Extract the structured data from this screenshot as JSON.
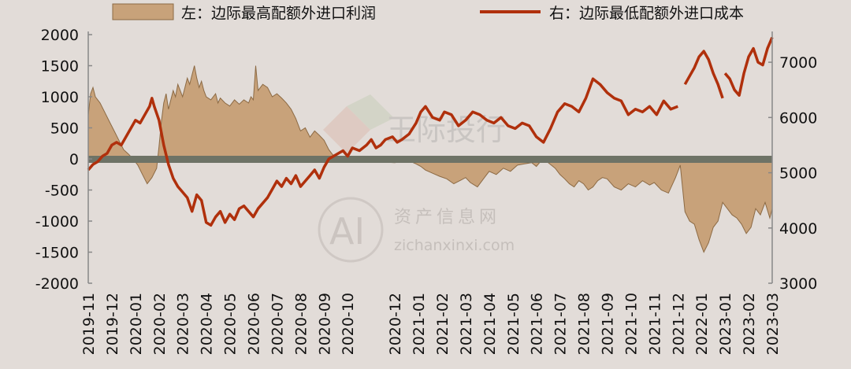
{
  "legend": {
    "left_label": "左：边际最高配额外进口利润",
    "right_label": "右：边际最低配额外进口成本"
  },
  "watermarks": {
    "top_text": "王际投行",
    "logo_text": "AI",
    "site_cn": "资产信息网",
    "site_url": "zichanxinxi.com"
  },
  "colors": {
    "area_fill": "#c8a27a",
    "area_stroke": "#8c6a44",
    "line": "#b0300c",
    "zero_band": "#6e7366",
    "background": "#e2dcd8",
    "axis": "#888888"
  },
  "chart_data": {
    "type": "area+line",
    "left_axis": {
      "ylim": [
        -2000,
        2000
      ],
      "ticks": [
        2000,
        1500,
        1000,
        500,
        0,
        -500,
        -1000,
        -1500,
        -2000
      ]
    },
    "right_axis": {
      "ylim": [
        3000,
        7500
      ],
      "ticks": [
        7000,
        6000,
        5000,
        4000,
        3000
      ]
    },
    "x_tick_labels": [
      "2019-11",
      "2019-12",
      "2020-01",
      "2020-02",
      "2020-03",
      "2020-04",
      "2020-05",
      "2020-06",
      "2020-07",
      "2020-08",
      "2020-09",
      "2020-10",
      "2020-12",
      "2021-01",
      "2021-02",
      "2021-03",
      "2021-04",
      "2021-05",
      "2021-06",
      "2021-07",
      "2021-08",
      "2021-09",
      "2021-10",
      "2021-11",
      "2021-12",
      "2022-01",
      "2023-01",
      "2023-02",
      "2023-03"
    ],
    "x_tick_positions": [
      0,
      1,
      2,
      3,
      4,
      5,
      6,
      7,
      8,
      9,
      10,
      11,
      13,
      14,
      15,
      16,
      17,
      18,
      19,
      20,
      21,
      22,
      23,
      24,
      25,
      26,
      27,
      28,
      29
    ],
    "x_range": [
      0,
      29
    ],
    "series": [
      {
        "name": "左：边际最高配额外进口利润",
        "axis": "left",
        "kind": "area",
        "points": [
          [
            0.0,
            700
          ],
          [
            0.1,
            1050
          ],
          [
            0.2,
            1150
          ],
          [
            0.3,
            1000
          ],
          [
            0.5,
            900
          ],
          [
            0.7,
            750
          ],
          [
            0.9,
            600
          ],
          [
            1.1,
            450
          ],
          [
            1.3,
            300
          ],
          [
            1.5,
            150
          ],
          [
            1.7,
            80
          ],
          [
            1.9,
            0
          ],
          [
            2.1,
            -100
          ],
          [
            2.3,
            -250
          ],
          [
            2.5,
            -400
          ],
          [
            2.7,
            -300
          ],
          [
            2.9,
            -150
          ],
          [
            3.0,
            200
          ],
          [
            3.1,
            600
          ],
          [
            3.2,
            900
          ],
          [
            3.3,
            1050
          ],
          [
            3.4,
            800
          ],
          [
            3.5,
            950
          ],
          [
            3.6,
            1100
          ],
          [
            3.7,
            1000
          ],
          [
            3.8,
            1200
          ],
          [
            3.9,
            1100
          ],
          [
            4.0,
            1000
          ],
          [
            4.1,
            1150
          ],
          [
            4.2,
            1300
          ],
          [
            4.3,
            1200
          ],
          [
            4.4,
            1350
          ],
          [
            4.5,
            1500
          ],
          [
            4.6,
            1300
          ],
          [
            4.7,
            1150
          ],
          [
            4.8,
            1250
          ],
          [
            4.9,
            1100
          ],
          [
            5.0,
            1000
          ],
          [
            5.2,
            950
          ],
          [
            5.4,
            1050
          ],
          [
            5.5,
            900
          ],
          [
            5.6,
            980
          ],
          [
            5.8,
            900
          ],
          [
            6.0,
            850
          ],
          [
            6.2,
            950
          ],
          [
            6.4,
            880
          ],
          [
            6.6,
            950
          ],
          [
            6.8,
            900
          ],
          [
            6.9,
            1000
          ],
          [
            7.0,
            950
          ],
          [
            7.1,
            1500
          ],
          [
            7.2,
            1100
          ],
          [
            7.4,
            1200
          ],
          [
            7.6,
            1150
          ],
          [
            7.8,
            1000
          ],
          [
            8.0,
            1050
          ],
          [
            8.2,
            980
          ],
          [
            8.4,
            900
          ],
          [
            8.6,
            800
          ],
          [
            8.8,
            650
          ],
          [
            9.0,
            450
          ],
          [
            9.2,
            500
          ],
          [
            9.4,
            350
          ],
          [
            9.6,
            450
          ],
          [
            9.8,
            380
          ],
          [
            10.0,
            300
          ],
          [
            10.2,
            150
          ],
          [
            10.4,
            50
          ],
          [
            10.6,
            20
          ],
          [
            10.8,
            -10
          ],
          [
            11.0,
            -40
          ],
          [
            11.3,
            -20
          ],
          [
            11.6,
            -30
          ],
          [
            12.0,
            -40
          ],
          [
            12.5,
            -50
          ],
          [
            13.0,
            -60
          ],
          [
            13.3,
            -40
          ],
          [
            13.6,
            -30
          ],
          [
            13.9,
            -80
          ],
          [
            14.1,
            -120
          ],
          [
            14.3,
            -180
          ],
          [
            14.6,
            -230
          ],
          [
            14.9,
            -280
          ],
          [
            15.2,
            -320
          ],
          [
            15.5,
            -400
          ],
          [
            15.8,
            -340
          ],
          [
            16.0,
            -300
          ],
          [
            16.2,
            -380
          ],
          [
            16.5,
            -450
          ],
          [
            16.8,
            -300
          ],
          [
            17.0,
            -200
          ],
          [
            17.3,
            -250
          ],
          [
            17.6,
            -150
          ],
          [
            17.9,
            -200
          ],
          [
            18.2,
            -100
          ],
          [
            18.5,
            -80
          ],
          [
            18.8,
            -60
          ],
          [
            19.0,
            -120
          ],
          [
            19.2,
            -30
          ],
          [
            19.5,
            -60
          ],
          [
            19.8,
            -150
          ],
          [
            20.0,
            -250
          ],
          [
            20.2,
            -320
          ],
          [
            20.4,
            -400
          ],
          [
            20.6,
            -450
          ],
          [
            20.8,
            -350
          ],
          [
            21.0,
            -400
          ],
          [
            21.2,
            -500
          ],
          [
            21.4,
            -450
          ],
          [
            21.6,
            -350
          ],
          [
            21.8,
            -300
          ],
          [
            22.0,
            -320
          ],
          [
            22.3,
            -450
          ],
          [
            22.6,
            -500
          ],
          [
            22.9,
            -400
          ],
          [
            23.2,
            -450
          ],
          [
            23.5,
            -350
          ],
          [
            23.8,
            -420
          ],
          [
            24.0,
            -380
          ],
          [
            24.3,
            -500
          ],
          [
            24.6,
            -550
          ],
          [
            24.9,
            -300
          ],
          [
            25.1,
            -100
          ],
          [
            25.3,
            -850
          ],
          [
            25.5,
            -1000
          ],
          [
            25.7,
            -1050
          ],
          [
            25.9,
            -1300
          ],
          [
            26.1,
            -1500
          ],
          [
            26.3,
            -1350
          ],
          [
            26.5,
            -1100
          ],
          [
            26.7,
            -1000
          ],
          [
            26.9,
            -700
          ],
          [
            27.1,
            -800
          ],
          [
            27.3,
            -900
          ],
          [
            27.5,
            -950
          ],
          [
            27.7,
            -1050
          ],
          [
            27.9,
            -1200
          ],
          [
            28.1,
            -1100
          ],
          [
            28.3,
            -800
          ],
          [
            28.5,
            -900
          ],
          [
            28.7,
            -700
          ],
          [
            28.9,
            -950
          ],
          [
            29.0,
            -800
          ]
        ]
      },
      {
        "name": "右：边际最低配额外进口成本",
        "axis": "right",
        "kind": "line",
        "segments": [
          [
            [
              0.0,
              5050
            ],
            [
              0.2,
              5150
            ],
            [
              0.4,
              5200
            ],
            [
              0.6,
              5300
            ],
            [
              0.8,
              5350
            ],
            [
              1.0,
              5500
            ],
            [
              1.2,
              5550
            ],
            [
              1.4,
              5500
            ],
            [
              1.6,
              5650
            ],
            [
              1.8,
              5800
            ],
            [
              2.0,
              5950
            ],
            [
              2.2,
              5900
            ],
            [
              2.4,
              6050
            ],
            [
              2.6,
              6200
            ],
            [
              2.7,
              6350
            ],
            [
              2.8,
              6200
            ],
            [
              3.0,
              5950
            ],
            [
              3.2,
              5500
            ],
            [
              3.4,
              5150
            ],
            [
              3.6,
              4900
            ],
            [
              3.8,
              4750
            ],
            [
              4.0,
              4650
            ],
            [
              4.2,
              4550
            ],
            [
              4.4,
              4300
            ],
            [
              4.6,
              4600
            ],
            [
              4.8,
              4500
            ],
            [
              5.0,
              4100
            ],
            [
              5.2,
              4050
            ],
            [
              5.4,
              4200
            ],
            [
              5.6,
              4300
            ],
            [
              5.8,
              4100
            ],
            [
              6.0,
              4250
            ],
            [
              6.2,
              4150
            ],
            [
              6.4,
              4350
            ],
            [
              6.6,
              4400
            ],
            [
              6.8,
              4300
            ],
            [
              7.0,
              4200
            ],
            [
              7.2,
              4350
            ],
            [
              7.4,
              4450
            ],
            [
              7.6,
              4550
            ],
            [
              7.8,
              4700
            ],
            [
              8.0,
              4850
            ],
            [
              8.2,
              4750
            ],
            [
              8.4,
              4900
            ],
            [
              8.6,
              4800
            ],
            [
              8.8,
              4950
            ],
            [
              9.0,
              4750
            ],
            [
              9.2,
              4850
            ],
            [
              9.4,
              4950
            ],
            [
              9.6,
              5050
            ],
            [
              9.8,
              4900
            ],
            [
              10.0,
              5100
            ],
            [
              10.2,
              5250
            ],
            [
              10.4,
              5300
            ],
            [
              10.6,
              5350
            ],
            [
              10.8,
              5400
            ],
            [
              11.0,
              5300
            ],
            [
              11.2,
              5450
            ],
            [
              11.5,
              5400
            ],
            [
              11.8,
              5500
            ],
            [
              12.0,
              5600
            ],
            [
              12.2,
              5450
            ],
            [
              12.4,
              5500
            ],
            [
              12.6,
              5600
            ],
            [
              12.9,
              5650
            ],
            [
              13.1,
              5550
            ],
            [
              13.3,
              5600
            ],
            [
              13.6,
              5700
            ],
            [
              13.9,
              5900
            ],
            [
              14.1,
              6100
            ],
            [
              14.3,
              6200
            ],
            [
              14.6,
              6000
            ],
            [
              14.9,
              5950
            ],
            [
              15.1,
              6100
            ],
            [
              15.4,
              6050
            ],
            [
              15.7,
              5850
            ],
            [
              16.0,
              5950
            ],
            [
              16.3,
              6100
            ],
            [
              16.6,
              6050
            ],
            [
              16.9,
              5950
            ],
            [
              17.2,
              5900
            ],
            [
              17.5,
              6000
            ],
            [
              17.8,
              5850
            ],
            [
              18.1,
              5800
            ],
            [
              18.4,
              5900
            ],
            [
              18.7,
              5850
            ],
            [
              19.0,
              5650
            ],
            [
              19.3,
              5550
            ],
            [
              19.6,
              5800
            ],
            [
              19.9,
              6100
            ],
            [
              20.2,
              6250
            ],
            [
              20.5,
              6200
            ],
            [
              20.8,
              6100
            ],
            [
              21.1,
              6350
            ],
            [
              21.4,
              6700
            ],
            [
              21.7,
              6600
            ],
            [
              22.0,
              6450
            ],
            [
              22.3,
              6350
            ],
            [
              22.6,
              6300
            ],
            [
              22.9,
              6050
            ],
            [
              23.2,
              6150
            ],
            [
              23.5,
              6100
            ],
            [
              23.8,
              6200
            ],
            [
              24.1,
              6050
            ],
            [
              24.4,
              6300
            ],
            [
              24.7,
              6150
            ],
            [
              25.0,
              6200
            ]
          ],
          [
            [
              25.3,
              6600
            ],
            [
              25.5,
              6750
            ],
            [
              25.7,
              6900
            ],
            [
              25.9,
              7100
            ],
            [
              26.1,
              7200
            ],
            [
              26.3,
              7050
            ],
            [
              26.5,
              6800
            ],
            [
              26.7,
              6600
            ],
            [
              26.9,
              6350
            ]
          ],
          [
            [
              27.0,
              6800
            ],
            [
              27.2,
              6700
            ],
            [
              27.4,
              6500
            ],
            [
              27.6,
              6400
            ],
            [
              27.8,
              6800
            ],
            [
              28.0,
              7100
            ],
            [
              28.2,
              7250
            ],
            [
              28.4,
              7000
            ],
            [
              28.6,
              6950
            ],
            [
              28.8,
              7250
            ],
            [
              29.0,
              7450
            ]
          ]
        ]
      }
    ]
  }
}
